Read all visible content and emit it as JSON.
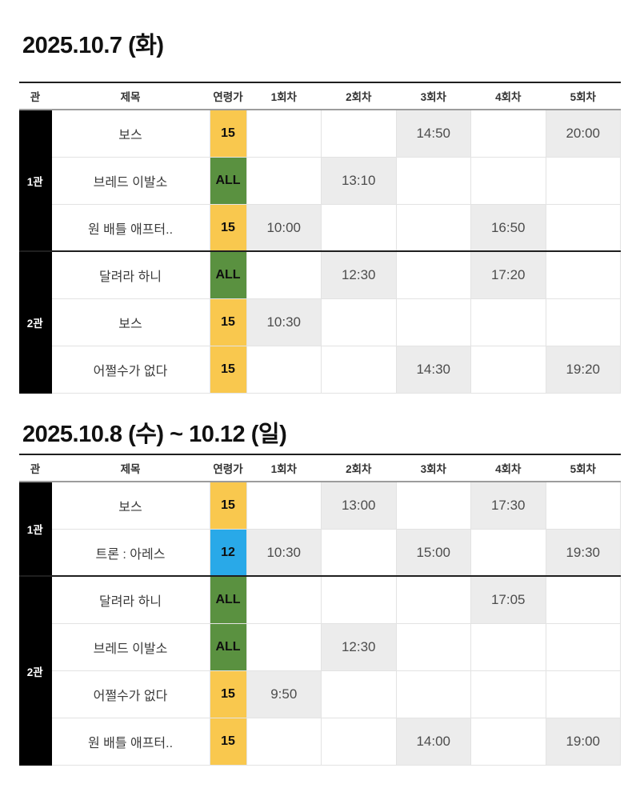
{
  "colors": {
    "ratings": {
      "15": "#F9C84E",
      "ALL": "#5A9140",
      "12": "#29A9E8"
    },
    "theater_cell_bg": "#000000",
    "filled_time_bg": "#ECECEC",
    "accent_border": "#1F1F1F"
  },
  "columns": [
    "관",
    "제목",
    "연령가",
    "1회차",
    "2회차",
    "3회차",
    "4회차",
    "5회차"
  ],
  "tables": [
    {
      "title": "2025.10.7 (화)",
      "groups": [
        {
          "theater": "1관",
          "rows": [
            {
              "title": "보스",
              "rating": "15",
              "times": [
                "",
                "",
                "14:50",
                "",
                "20:00"
              ]
            },
            {
              "title": "브레드 이발소",
              "rating": "ALL",
              "times": [
                "",
                "13:10",
                "",
                "",
                ""
              ]
            },
            {
              "title": "원 배틀 애프터..",
              "rating": "15",
              "times": [
                "10:00",
                "",
                "",
                "16:50",
                ""
              ]
            }
          ]
        },
        {
          "theater": "2관",
          "rows": [
            {
              "title": "달려라 하니",
              "rating": "ALL",
              "times": [
                "",
                "12:30",
                "",
                "17:20",
                ""
              ]
            },
            {
              "title": "보스",
              "rating": "15",
              "times": [
                "10:30",
                "",
                "",
                "",
                ""
              ]
            },
            {
              "title": "어쩔수가 없다",
              "rating": "15",
              "times": [
                "",
                "",
                "14:30",
                "",
                "19:20"
              ]
            }
          ]
        }
      ]
    },
    {
      "title": "2025.10.8 (수) ~ 10.12 (일)",
      "groups": [
        {
          "theater": "1관",
          "rows": [
            {
              "title": "보스",
              "rating": "15",
              "times": [
                "",
                "13:00",
                "",
                "17:30",
                ""
              ]
            },
            {
              "title": "트론 : 아레스",
              "rating": "12",
              "times": [
                "10:30",
                "",
                "15:00",
                "",
                "19:30"
              ]
            }
          ]
        },
        {
          "theater": "2관",
          "rows": [
            {
              "title": "달려라 하니",
              "rating": "ALL",
              "times": [
                "",
                "",
                "",
                "17:05",
                ""
              ]
            },
            {
              "title": "브레드 이발소",
              "rating": "ALL",
              "times": [
                "",
                "12:30",
                "",
                "",
                ""
              ]
            },
            {
              "title": "어쩔수가 없다",
              "rating": "15",
              "times": [
                "9:50",
                "",
                "",
                "",
                ""
              ]
            },
            {
              "title": "원 배틀 애프터..",
              "rating": "15",
              "times": [
                "",
                "",
                "14:00",
                "",
                "19:00"
              ]
            }
          ]
        }
      ]
    }
  ]
}
